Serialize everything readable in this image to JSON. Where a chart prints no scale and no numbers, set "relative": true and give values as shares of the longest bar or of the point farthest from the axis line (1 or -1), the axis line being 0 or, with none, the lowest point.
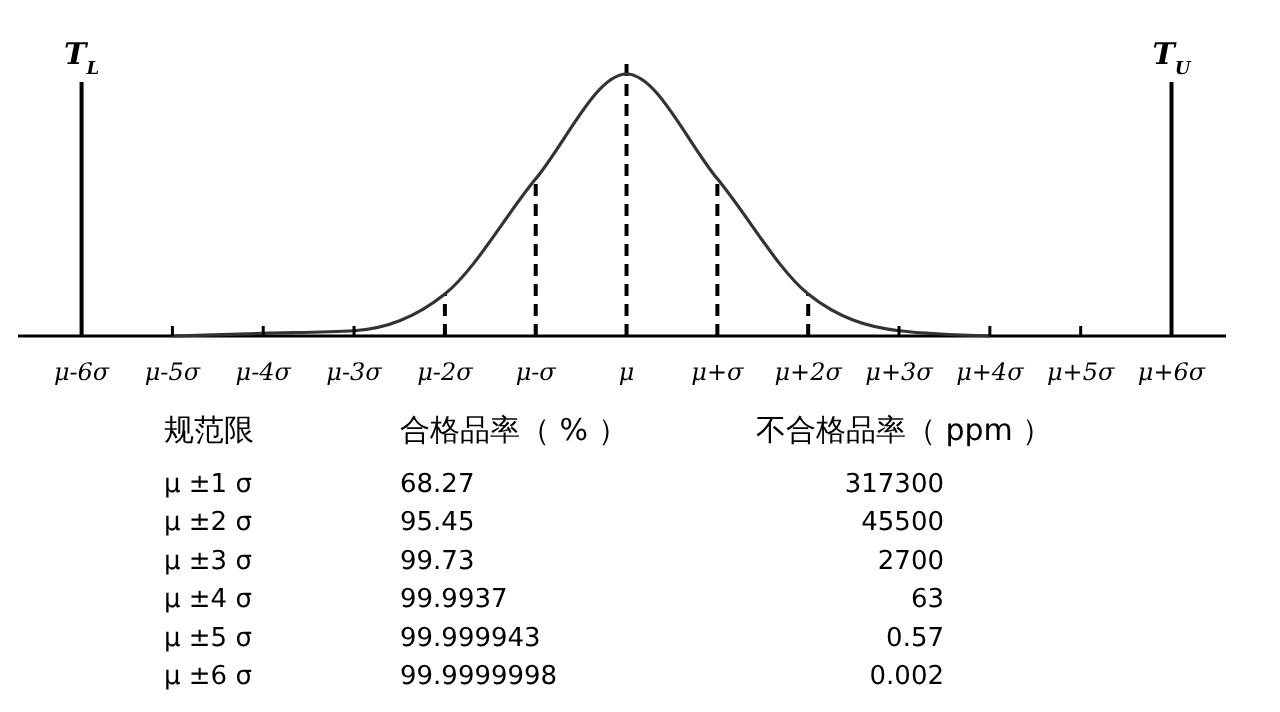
{
  "chart_data": {
    "type": "line",
    "relative": true,
    "marker": "none",
    "line_style": "solid",
    "categories": [
      "μ-6σ",
      "μ-5σ",
      "μ-4σ",
      "μ-3σ",
      "μ-2σ",
      "μ-σ",
      "μ",
      "μ+σ",
      "μ+2σ",
      "μ+3σ",
      "μ+4σ",
      "μ+5σ",
      "μ+6σ"
    ],
    "series": [
      {
        "color": "#333333",
        "values": [
          null,
          0,
          0.01,
          0.02,
          0.16,
          0.6,
          1,
          0.6,
          0.16,
          0.02,
          0,
          null,
          null
        ]
      }
    ],
    "ref_lines": [
      {
        "axis": "x",
        "value": "μ-6σ",
        "label": "T$_{L}$",
        "line_style": "solid",
        "color": "#000000"
      },
      {
        "axis": "x",
        "value": "μ+6σ",
        "label": "T$_{U}$",
        "line_style": "solid",
        "color": "#000000"
      },
      {
        "axis": "x",
        "value": "μ",
        "line_style": "dashed",
        "color": "#000000"
      },
      {
        "axis": "x",
        "value": "μ-σ",
        "line_style": "dashed",
        "color": "#000000"
      },
      {
        "axis": "x",
        "value": "μ+σ",
        "line_style": "dashed",
        "color": "#000000"
      },
      {
        "axis": "x",
        "value": "μ-2σ",
        "line_style": "dashed",
        "color": "#000000"
      },
      {
        "axis": "x",
        "value": "μ+2σ",
        "line_style": "dashed",
        "color": "#000000"
      }
    ],
    "annotations": [
      "规范限",
      "合格品率（ % ）",
      "不合格品率（ ppm ）",
      "μ ±1 σ",
      "68.27",
      "317300",
      "μ ±2 σ",
      "95.45",
      "45500",
      "μ ±3 σ",
      "99.73",
      "2700",
      "μ ±4 σ",
      "99.9937",
      "63",
      "μ ±5 σ",
      "99.999943",
      "0.57",
      "μ ±6 σ",
      "99.9999998",
      "0.002"
    ]
  }
}
